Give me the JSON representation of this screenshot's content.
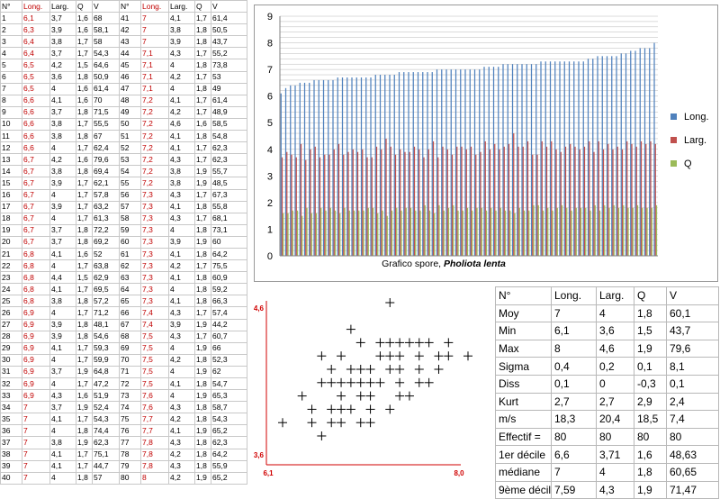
{
  "spore_table": {
    "headers": [
      "N°",
      "Long.",
      "Larg.",
      "Q",
      "V",
      "N°",
      "Long.",
      "Larg.",
      "Q",
      "V"
    ],
    "rows": [
      [
        "1",
        "6,1",
        "3,7",
        "1,6",
        "68",
        "41",
        "7",
        "4,1",
        "1,7",
        "61,4"
      ],
      [
        "2",
        "6,3",
        "3,9",
        "1,6",
        "58,1",
        "42",
        "7",
        "3,8",
        "1,8",
        "50,5"
      ],
      [
        "3",
        "6,4",
        "3,8",
        "1,7",
        "58",
        "43",
        "7",
        "3,9",
        "1,8",
        "43,7"
      ],
      [
        "4",
        "6,4",
        "3,7",
        "1,7",
        "54,3",
        "44",
        "7,1",
        "4,3",
        "1,7",
        "55,2"
      ],
      [
        "5",
        "6,5",
        "4,2",
        "1,5",
        "64,6",
        "45",
        "7,1",
        "4",
        "1,8",
        "73,8"
      ],
      [
        "6",
        "6,5",
        "3,6",
        "1,8",
        "50,9",
        "46",
        "7,1",
        "4,2",
        "1,7",
        "53"
      ],
      [
        "7",
        "6,5",
        "4",
        "1,6",
        "61,4",
        "47",
        "7,1",
        "4",
        "1,8",
        "49"
      ],
      [
        "8",
        "6,6",
        "4,1",
        "1,6",
        "70",
        "48",
        "7,2",
        "4,1",
        "1,7",
        "61,4"
      ],
      [
        "9",
        "6,6",
        "3,7",
        "1,8",
        "71,5",
        "49",
        "7,2",
        "4,2",
        "1,7",
        "48,9"
      ],
      [
        "10",
        "6,6",
        "3,8",
        "1,7",
        "55,5",
        "50",
        "7,2",
        "4,6",
        "1,6",
        "58,5"
      ],
      [
        "11",
        "6,6",
        "3,8",
        "1,8",
        "67",
        "51",
        "7,2",
        "4,1",
        "1,8",
        "54,8"
      ],
      [
        "12",
        "6,6",
        "4",
        "1,7",
        "62,4",
        "52",
        "7,2",
        "4,1",
        "1,7",
        "62,3"
      ],
      [
        "13",
        "6,7",
        "4,2",
        "1,6",
        "79,6",
        "53",
        "7,2",
        "4,3",
        "1,7",
        "62,3"
      ],
      [
        "14",
        "6,7",
        "3,8",
        "1,8",
        "69,4",
        "54",
        "7,2",
        "3,8",
        "1,9",
        "55,7"
      ],
      [
        "15",
        "6,7",
        "3,9",
        "1,7",
        "62,1",
        "55",
        "7,2",
        "3,8",
        "1,9",
        "48,5"
      ],
      [
        "16",
        "6,7",
        "4",
        "1,7",
        "57,8",
        "56",
        "7,3",
        "4,3",
        "1,7",
        "67,3"
      ],
      [
        "17",
        "6,7",
        "3,9",
        "1,7",
        "63,2",
        "57",
        "7,3",
        "4,1",
        "1,8",
        "55,8"
      ],
      [
        "18",
        "6,7",
        "4",
        "1,7",
        "61,3",
        "58",
        "7,3",
        "4,3",
        "1,7",
        "68,1"
      ],
      [
        "19",
        "6,7",
        "3,7",
        "1,8",
        "72,2",
        "59",
        "7,3",
        "4",
        "1,8",
        "73,1"
      ],
      [
        "20",
        "6,7",
        "3,7",
        "1,8",
        "69,2",
        "60",
        "7,3",
        "3,9",
        "1,9",
        "60"
      ],
      [
        "21",
        "6,8",
        "4,1",
        "1,6",
        "52",
        "61",
        "7,3",
        "4,1",
        "1,8",
        "64,2"
      ],
      [
        "22",
        "6,8",
        "4",
        "1,7",
        "63,8",
        "62",
        "7,3",
        "4,2",
        "1,7",
        "75,5"
      ],
      [
        "23",
        "6,8",
        "4,4",
        "1,5",
        "62,9",
        "63",
        "7,3",
        "4,1",
        "1,8",
        "60,9"
      ],
      [
        "24",
        "6,8",
        "4,1",
        "1,7",
        "69,5",
        "64",
        "7,3",
        "4",
        "1,8",
        "59,2"
      ],
      [
        "25",
        "6,8",
        "3,8",
        "1,8",
        "57,2",
        "65",
        "7,3",
        "4,1",
        "1,8",
        "66,3"
      ],
      [
        "26",
        "6,9",
        "4",
        "1,7",
        "71,2",
        "66",
        "7,4",
        "4,3",
        "1,7",
        "57,4"
      ],
      [
        "27",
        "6,9",
        "3,9",
        "1,8",
        "48,1",
        "67",
        "7,4",
        "3,9",
        "1,9",
        "44,2"
      ],
      [
        "28",
        "6,9",
        "3,9",
        "1,8",
        "54,6",
        "68",
        "7,5",
        "4,3",
        "1,7",
        "60,7"
      ],
      [
        "29",
        "6,9",
        "4,1",
        "1,7",
        "59,3",
        "69",
        "7,5",
        "4",
        "1,9",
        "66"
      ],
      [
        "30",
        "6,9",
        "4",
        "1,7",
        "59,9",
        "70",
        "7,5",
        "4,2",
        "1,8",
        "52,3"
      ],
      [
        "31",
        "6,9",
        "3,7",
        "1,9",
        "64,8",
        "71",
        "7,5",
        "4",
        "1,9",
        "62"
      ],
      [
        "32",
        "6,9",
        "4",
        "1,7",
        "47,2",
        "72",
        "7,5",
        "4,1",
        "1,8",
        "54,7"
      ],
      [
        "33",
        "6,9",
        "4,3",
        "1,6",
        "51,9",
        "73",
        "7,6",
        "4",
        "1,9",
        "65,3"
      ],
      [
        "34",
        "7",
        "3,7",
        "1,9",
        "52,4",
        "74",
        "7,6",
        "4,3",
        "1,8",
        "58,7"
      ],
      [
        "35",
        "7",
        "4,1",
        "1,7",
        "54,3",
        "75",
        "7,7",
        "4,2",
        "1,8",
        "54,3"
      ],
      [
        "36",
        "7",
        "4",
        "1,8",
        "74,4",
        "76",
        "7,7",
        "4,1",
        "1,9",
        "65,2"
      ],
      [
        "37",
        "7",
        "3,8",
        "1,9",
        "62,3",
        "77",
        "7,8",
        "4,3",
        "1,8",
        "62,3"
      ],
      [
        "38",
        "7",
        "4,1",
        "1,7",
        "75,1",
        "78",
        "7,8",
        "4,2",
        "1,8",
        "64,2"
      ],
      [
        "39",
        "7",
        "4,1",
        "1,7",
        "44,7",
        "79",
        "7,8",
        "4,3",
        "1,8",
        "55,9"
      ],
      [
        "40",
        "7",
        "4",
        "1,8",
        "57",
        "80",
        "8",
        "4,2",
        "1,9",
        "65,2"
      ]
    ]
  },
  "chart_data": [
    {
      "type": "bar",
      "title": "Grafico spore, ",
      "title_species": "Pholiota lenta",
      "ylim": [
        0,
        9
      ],
      "yticks": [
        "0",
        "1",
        "2",
        "3",
        "4",
        "5",
        "6",
        "7",
        "8",
        "9"
      ],
      "grid": true,
      "legend_position": "right",
      "series": [
        {
          "name": "Long.",
          "color": "#4f81bd",
          "values": [
            6.1,
            6.3,
            6.4,
            6.4,
            6.5,
            6.5,
            6.5,
            6.6,
            6.6,
            6.6,
            6.6,
            6.6,
            6.7,
            6.7,
            6.7,
            6.7,
            6.7,
            6.7,
            6.7,
            6.7,
            6.8,
            6.8,
            6.8,
            6.8,
            6.8,
            6.9,
            6.9,
            6.9,
            6.9,
            6.9,
            6.9,
            6.9,
            6.9,
            7,
            7,
            7,
            7,
            7,
            7,
            7,
            7,
            7,
            7,
            7.1,
            7.1,
            7.1,
            7.1,
            7.2,
            7.2,
            7.2,
            7.2,
            7.2,
            7.2,
            7.2,
            7.2,
            7.3,
            7.3,
            7.3,
            7.3,
            7.3,
            7.3,
            7.3,
            7.3,
            7.3,
            7.3,
            7.4,
            7.4,
            7.5,
            7.5,
            7.5,
            7.5,
            7.5,
            7.6,
            7.6,
            7.7,
            7.7,
            7.8,
            7.8,
            7.8,
            8
          ]
        },
        {
          "name": "Larg.",
          "color": "#c0504d",
          "values": [
            3.7,
            3.9,
            3.8,
            3.7,
            4.2,
            3.6,
            4,
            4.1,
            3.7,
            3.8,
            3.8,
            4,
            4.2,
            3.8,
            3.9,
            4,
            3.9,
            4,
            3.7,
            3.7,
            4.1,
            4,
            4.4,
            4.1,
            3.8,
            4,
            3.9,
            3.9,
            4.1,
            4,
            3.7,
            4,
            4.3,
            3.7,
            4.1,
            4,
            3.8,
            4.1,
            4.1,
            4,
            4.1,
            3.8,
            3.9,
            4.3,
            4,
            4.2,
            4,
            4.1,
            4.2,
            4.6,
            4.1,
            4.1,
            4.3,
            3.8,
            3.8,
            4.3,
            4.1,
            4.3,
            4,
            3.9,
            4.1,
            4.2,
            4.1,
            4,
            4.1,
            4.3,
            3.9,
            4.3,
            4,
            4.2,
            4,
            4.1,
            4,
            4.3,
            4.2,
            4.1,
            4.3,
            4.2,
            4.3,
            4.2
          ]
        },
        {
          "name": "Q",
          "color": "#9bbb59",
          "values": [
            1.6,
            1.6,
            1.7,
            1.7,
            1.5,
            1.8,
            1.6,
            1.6,
            1.8,
            1.7,
            1.8,
            1.7,
            1.6,
            1.8,
            1.7,
            1.7,
            1.7,
            1.7,
            1.8,
            1.8,
            1.6,
            1.7,
            1.5,
            1.7,
            1.8,
            1.7,
            1.8,
            1.8,
            1.7,
            1.7,
            1.9,
            1.7,
            1.6,
            1.9,
            1.7,
            1.8,
            1.9,
            1.7,
            1.7,
            1.8,
            1.7,
            1.8,
            1.8,
            1.7,
            1.8,
            1.7,
            1.8,
            1.7,
            1.7,
            1.6,
            1.8,
            1.7,
            1.7,
            1.9,
            1.9,
            1.7,
            1.8,
            1.7,
            1.8,
            1.9,
            1.8,
            1.7,
            1.8,
            1.8,
            1.8,
            1.7,
            1.9,
            1.7,
            1.9,
            1.8,
            1.9,
            1.8,
            1.9,
            1.8,
            1.8,
            1.9,
            1.8,
            1.8,
            1.8,
            1.9
          ]
        }
      ]
    },
    {
      "type": "scatter",
      "marker": "+",
      "x_range_labels": [
        "6,1",
        "8,0"
      ],
      "y_range_labels": [
        "3,6",
        "4,6"
      ],
      "xlim": [
        6.1,
        8.0
      ],
      "ylim": [
        3.6,
        4.6
      ],
      "points": [
        [
          6.1,
          3.7
        ],
        [
          6.3,
          3.9
        ],
        [
          6.4,
          3.8
        ],
        [
          6.4,
          3.7
        ],
        [
          6.5,
          4.2
        ],
        [
          6.5,
          3.6
        ],
        [
          6.5,
          4.0
        ],
        [
          6.6,
          4.1
        ],
        [
          6.6,
          3.7
        ],
        [
          6.6,
          3.8
        ],
        [
          6.6,
          4.0
        ],
        [
          6.7,
          4.2
        ],
        [
          6.7,
          3.8
        ],
        [
          6.7,
          3.9
        ],
        [
          6.7,
          4.0
        ],
        [
          6.7,
          3.7
        ],
        [
          6.8,
          4.1
        ],
        [
          6.8,
          4.0
        ],
        [
          6.8,
          4.4
        ],
        [
          6.8,
          3.8
        ],
        [
          6.9,
          4.0
        ],
        [
          6.9,
          3.9
        ],
        [
          6.9,
          4.1
        ],
        [
          6.9,
          3.7
        ],
        [
          6.9,
          4.3
        ],
        [
          7.0,
          3.7
        ],
        [
          7.0,
          4.1
        ],
        [
          7.0,
          4.0
        ],
        [
          7.0,
          3.8
        ],
        [
          7.0,
          3.9
        ],
        [
          7.1,
          4.3
        ],
        [
          7.1,
          4.0
        ],
        [
          7.1,
          4.2
        ],
        [
          7.2,
          4.1
        ],
        [
          7.2,
          4.2
        ],
        [
          7.2,
          4.6
        ],
        [
          7.2,
          4.3
        ],
        [
          7.2,
          3.8
        ],
        [
          7.3,
          4.3
        ],
        [
          7.3,
          4.1
        ],
        [
          7.3,
          4.0
        ],
        [
          7.3,
          3.9
        ],
        [
          7.3,
          4.2
        ],
        [
          7.4,
          4.3
        ],
        [
          7.4,
          3.9
        ],
        [
          7.5,
          4.3
        ],
        [
          7.5,
          4.0
        ],
        [
          7.5,
          4.2
        ],
        [
          7.5,
          4.1
        ],
        [
          7.6,
          4.0
        ],
        [
          7.6,
          4.3
        ],
        [
          7.7,
          4.2
        ],
        [
          7.7,
          4.1
        ],
        [
          7.8,
          4.3
        ],
        [
          7.8,
          4.2
        ],
        [
          8.0,
          4.2
        ]
      ]
    }
  ],
  "stats": {
    "headers": [
      "N°",
      "Long.",
      "Larg.",
      "Q",
      "V"
    ],
    "rows": [
      [
        "Moy",
        "7",
        "4",
        "1,8",
        "60,1"
      ],
      [
        "Min",
        "6,1",
        "3,6",
        "1,5",
        "43,7"
      ],
      [
        "Max",
        "8",
        "4,6",
        "1,9",
        "79,6"
      ],
      [
        "Sigma",
        "0,4",
        "0,2",
        "0,1",
        "8,1"
      ],
      [
        "Diss",
        "0,1",
        "0",
        "-0,3",
        "0,1"
      ],
      [
        "Kurt",
        "2,7",
        "2,7",
        "2,9",
        "2,4"
      ],
      [
        "m/s",
        "18,3",
        "20,4",
        "18,5",
        "7,4"
      ],
      [
        "Effectif =",
        "80",
        "80",
        "80",
        "80"
      ],
      [
        "1er décile",
        "6,6",
        "3,71",
        "1,6",
        "48,63"
      ],
      [
        "médiane",
        "7",
        "4",
        "1,8",
        "60,65"
      ],
      [
        "9ème décile",
        "7,59",
        "4,3",
        "1,9",
        "71,47"
      ]
    ]
  }
}
